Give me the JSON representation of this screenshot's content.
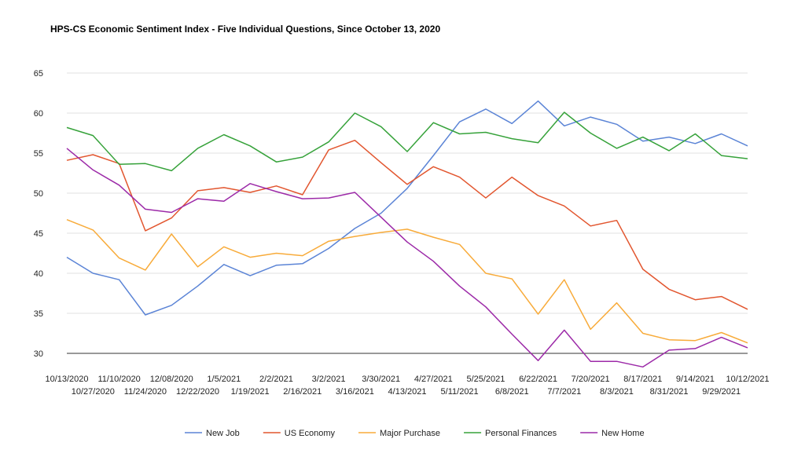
{
  "chart_data": {
    "type": "line",
    "title": "HPS-CS Economic Sentiment Index - Five Individual Questions, Since October 13, 2020",
    "xlabel": "",
    "ylabel": "",
    "ylim": [
      30,
      65
    ],
    "yticks": [
      30,
      35,
      40,
      45,
      50,
      55,
      60,
      65
    ],
    "grid": true,
    "legend_position": "bottom",
    "categories": [
      "10/13/2020",
      "10/27/2020",
      "11/10/2020",
      "11/24/2020",
      "12/08/2020",
      "12/22/2020",
      "1/5/2021",
      "1/19/2021",
      "2/2/2021",
      "2/16/2021",
      "3/2/2021",
      "3/16/2021",
      "3/30/2021",
      "4/13/2021",
      "4/27/2021",
      "5/11/2021",
      "5/25/2021",
      "6/8/2021",
      "6/22/2021",
      "7/7/2021",
      "7/20/2021",
      "8/3/2021",
      "8/17/2021",
      "8/31/2021",
      "9/14/2021",
      "9/29/2021",
      "10/12/2021"
    ],
    "series": [
      {
        "name": "New Job",
        "color": "#5b84d6",
        "values": [
          42.0,
          40.0,
          39.2,
          34.8,
          36.0,
          38.4,
          41.1,
          39.7,
          41.0,
          41.2,
          43.1,
          45.6,
          47.5,
          50.6,
          54.7,
          58.9,
          60.5,
          58.7,
          61.5,
          58.4,
          59.5,
          58.6,
          56.5,
          57.0,
          56.2,
          57.4,
          55.9
        ]
      },
      {
        "name": "US Economy",
        "color": "#e2562f",
        "values": [
          54.1,
          54.8,
          53.7,
          45.3,
          46.9,
          50.3,
          50.7,
          50.1,
          50.9,
          49.8,
          55.4,
          56.6,
          53.8,
          51.1,
          53.3,
          52.0,
          49.4,
          52.0,
          49.7,
          48.4,
          45.9,
          46.6,
          40.5,
          38.0,
          36.7,
          37.1,
          35.5
        ]
      },
      {
        "name": "Major Purchase",
        "color": "#f8ab3a",
        "values": [
          46.7,
          45.4,
          41.9,
          40.4,
          44.9,
          40.8,
          43.3,
          42.0,
          42.5,
          42.2,
          44.0,
          44.6,
          45.1,
          45.5,
          44.5,
          43.6,
          40.0,
          39.3,
          34.9,
          39.2,
          33.0,
          36.3,
          32.5,
          31.7,
          31.6,
          32.6,
          31.3
        ]
      },
      {
        "name": "Personal Finances",
        "color": "#36a23a",
        "values": [
          58.2,
          57.2,
          53.6,
          53.7,
          52.8,
          55.6,
          57.3,
          55.9,
          53.9,
          54.5,
          56.4,
          60.0,
          58.3,
          55.2,
          58.8,
          57.4,
          57.6,
          56.8,
          56.3,
          60.1,
          57.5,
          55.6,
          57.0,
          55.3,
          57.4,
          54.7,
          54.3
        ]
      },
      {
        "name": "New Home",
        "color": "#9c2aa8",
        "values": [
          55.6,
          52.9,
          51.0,
          48.0,
          47.6,
          49.3,
          49.0,
          51.2,
          50.2,
          49.3,
          49.4,
          50.1,
          47.0,
          43.9,
          41.5,
          38.4,
          35.8,
          32.4,
          29.1,
          32.9,
          29.0,
          29.0,
          28.3,
          30.4,
          30.6,
          32.0,
          30.7
        ]
      }
    ]
  }
}
